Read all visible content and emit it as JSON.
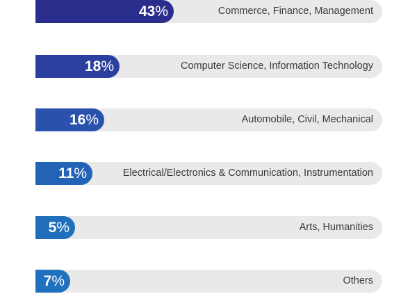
{
  "chart_data": {
    "type": "bar",
    "orientation": "horizontal",
    "categories": [
      "Commerce, Finance, Management",
      "Computer Science, Information Technology",
      "Automobile, Civil, Mechanical",
      "Electrical/Electronics & Communication, Instrumentation",
      "Arts, Humanities",
      "Others"
    ],
    "values": [
      43,
      18,
      16,
      11,
      5,
      7
    ],
    "value_labels": [
      "43",
      "18",
      "16",
      "11",
      "5",
      "7"
    ],
    "value_suffix": "%",
    "xlim": [
      0,
      100
    ],
    "bar_colors": [
      "#2a2d8c",
      "#2b3f9f",
      "#2a52ad",
      "#2263b6",
      "#1f6fbd",
      "#1f70be"
    ],
    "track_color": "#e9e9e9",
    "grid": false,
    "legend": false
  }
}
